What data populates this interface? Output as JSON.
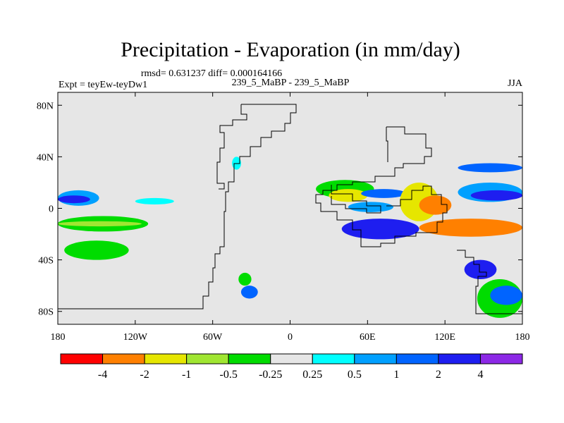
{
  "chart_data": {
    "type": "heatmap",
    "title": "Precipitation - Evaporation (in mm/day)",
    "stats_text": "rmsd= 0.631237 diff= 0.000164166",
    "left_label": "Expt = teyEw-teyDw1",
    "center_label": "239_5_MaBP - 239_5_MaBP",
    "right_label": "JJA",
    "xlabel": "",
    "ylabel": "",
    "x_range": [
      -180,
      180
    ],
    "y_range": [
      -90,
      90
    ],
    "x_ticks": [
      {
        "value": -180,
        "label": "180"
      },
      {
        "value": -120,
        "label": "120W"
      },
      {
        "value": -60,
        "label": "60W"
      },
      {
        "value": 0,
        "label": "0"
      },
      {
        "value": 60,
        "label": "60E"
      },
      {
        "value": 120,
        "label": "120E"
      },
      {
        "value": 180,
        "label": "180"
      }
    ],
    "y_ticks": [
      {
        "value": 80,
        "label": "80N"
      },
      {
        "value": 40,
        "label": "40N"
      },
      {
        "value": 0,
        "label": "0"
      },
      {
        "value": -40,
        "label": "40S"
      },
      {
        "value": -80,
        "label": "80S"
      }
    ],
    "levels": [
      {
        "label": "",
        "color": "#ff0000"
      },
      {
        "label": "-4",
        "color": "#ff8000"
      },
      {
        "label": "-2",
        "color": "#e6e600"
      },
      {
        "label": "-1",
        "color": "#a0e632"
      },
      {
        "label": "-0.5",
        "color": "#00dc00"
      },
      {
        "label": "-0.25",
        "color": "#e6e6e6"
      },
      {
        "label": "0.25",
        "color": "#00ffff"
      },
      {
        "label": "0.5",
        "color": "#00a0ff"
      },
      {
        "label": "1",
        "color": "#0064ff"
      },
      {
        "label": "2",
        "color": "#1e1ef0"
      },
      {
        "label": "4",
        "color": "#8c28e6"
      }
    ],
    "regions": [
      {
        "lon": [
          -180,
          -148
        ],
        "lat": [
          14,
          2
        ],
        "level": 7
      },
      {
        "lon": [
          -180,
          -155
        ],
        "lat": [
          10,
          4
        ],
        "level": 9
      },
      {
        "lon": [
          -180,
          -110
        ],
        "lat": [
          -6,
          -18
        ],
        "level": 4
      },
      {
        "lon": [
          -180,
          -115
        ],
        "lat": [
          -10,
          -14
        ],
        "level": 3
      },
      {
        "lon": [
          -175,
          -125
        ],
        "lat": [
          -25,
          -40
        ],
        "level": 4
      },
      {
        "lon": [
          -120,
          -90
        ],
        "lat": [
          8,
          3
        ],
        "level": 6
      },
      {
        "lon": [
          -45,
          -38
        ],
        "lat": [
          40,
          30
        ],
        "level": 6
      },
      {
        "lon": [
          -38,
          -25
        ],
        "lat": [
          -60,
          -70
        ],
        "level": 8
      },
      {
        "lon": [
          -40,
          -30
        ],
        "lat": [
          -50,
          -60
        ],
        "level": 4
      },
      {
        "lon": [
          20,
          65
        ],
        "lat": [
          22,
          8
        ],
        "level": 4
      },
      {
        "lon": [
          30,
          60
        ],
        "lat": [
          15,
          5
        ],
        "level": 2
      },
      {
        "lon": [
          45,
          80
        ],
        "lat": [
          5,
          -3
        ],
        "level": 7
      },
      {
        "lon": [
          55,
          90
        ],
        "lat": [
          15,
          8
        ],
        "level": 8
      },
      {
        "lon": [
          85,
          115
        ],
        "lat": [
          20,
          -10
        ],
        "level": 2
      },
      {
        "lon": [
          100,
          125
        ],
        "lat": [
          10,
          -5
        ],
        "level": 1
      },
      {
        "lon": [
          108,
          122
        ],
        "lat": [
          -12,
          -18
        ],
        "level": 0
      },
      {
        "lon": [
          100,
          180
        ],
        "lat": [
          -8,
          -22
        ],
        "level": 1
      },
      {
        "lon": [
          40,
          100
        ],
        "lat": [
          -8,
          -24
        ],
        "level": 9
      },
      {
        "lon": [
          130,
          180
        ],
        "lat": [
          20,
          5
        ],
        "level": 7
      },
      {
        "lon": [
          140,
          180
        ],
        "lat": [
          14,
          6
        ],
        "level": 9
      },
      {
        "lon": [
          130,
          180
        ],
        "lat": [
          35,
          28
        ],
        "level": 8
      },
      {
        "lon": [
          135,
          160
        ],
        "lat": [
          -40,
          -55
        ],
        "level": 9
      },
      {
        "lon": [
          145,
          180
        ],
        "lat": [
          -55,
          -85
        ],
        "level": 4
      },
      {
        "lon": [
          155,
          180
        ],
        "lat": [
          -60,
          -75
        ],
        "level": 8
      }
    ]
  }
}
